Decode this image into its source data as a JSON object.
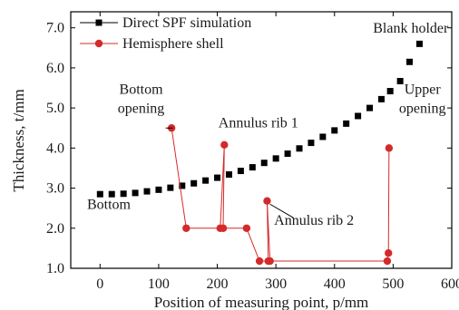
{
  "chart_data": {
    "type": "scatter",
    "xlabel": "Position of measuring point, p/mm",
    "ylabel": "Thickness, t/mm",
    "xlim": [
      -50,
      600
    ],
    "ylim": [
      1.0,
      7.4
    ],
    "x_ticks": [
      "0",
      "100",
      "200",
      "300",
      "400",
      "500",
      "600"
    ],
    "y_ticks": [
      "1.0",
      "2.0",
      "3.0",
      "4.0",
      "5.0",
      "6.0",
      "7.0"
    ],
    "legend_position": "top-left",
    "series": [
      {
        "name": "Direct SPF simulation",
        "color": "#000000",
        "marker": "square",
        "connected": false,
        "points": [
          [
            0,
            2.85
          ],
          [
            20,
            2.85
          ],
          [
            40,
            2.86
          ],
          [
            60,
            2.88
          ],
          [
            80,
            2.92
          ],
          [
            100,
            2.96
          ],
          [
            120,
            3.01
          ],
          [
            140,
            3.06
          ],
          [
            160,
            3.12
          ],
          [
            180,
            3.19
          ],
          [
            200,
            3.26
          ],
          [
            220,
            3.34
          ],
          [
            240,
            3.43
          ],
          [
            260,
            3.52
          ],
          [
            280,
            3.63
          ],
          [
            300,
            3.74
          ],
          [
            320,
            3.86
          ],
          [
            340,
            3.99
          ],
          [
            360,
            4.13
          ],
          [
            380,
            4.28
          ],
          [
            400,
            4.44
          ],
          [
            420,
            4.61
          ],
          [
            440,
            4.8
          ],
          [
            460,
            5.0
          ],
          [
            480,
            5.22
          ],
          [
            495,
            5.42
          ],
          [
            512,
            5.67
          ],
          [
            528,
            6.15
          ],
          [
            545,
            6.6
          ]
        ]
      },
      {
        "name": "Hemisphere shell",
        "color": "#d42a2a",
        "marker": "circle",
        "connected": true,
        "points": [
          [
            122,
            4.5
          ],
          [
            147,
            2.0
          ],
          [
            205,
            2.0
          ],
          [
            212,
            4.08
          ],
          [
            210,
            2.0
          ],
          [
            250,
            2.0
          ],
          [
            272,
            1.18
          ],
          [
            287,
            1.18
          ],
          [
            285,
            2.68
          ],
          [
            290,
            1.18
          ],
          [
            490,
            1.18
          ],
          [
            492,
            1.38
          ],
          [
            493,
            4.0
          ]
        ]
      }
    ],
    "annotations": [
      {
        "text": "Blank holder",
        "x": 530,
        "y": 6.88
      },
      {
        "text": "Bottom",
        "x": 70,
        "y": 5.35
      },
      {
        "text": "opening",
        "x": 70,
        "y": 4.88
      },
      {
        "text": "Annulus rib 1",
        "x": 270,
        "y": 4.52
      },
      {
        "text": "Upper",
        "x": 550,
        "y": 5.35
      },
      {
        "text": "opening",
        "x": 550,
        "y": 4.88
      },
      {
        "text": "Annulus rib 2",
        "x": 365,
        "y": 2.08
      },
      {
        "text": "Bottom",
        "x": 15,
        "y": 2.48
      }
    ],
    "annotation_arrows": [
      {
        "from": [
          112,
          4.5
        ],
        "to": [
          124,
          4.5
        ]
      },
      {
        "from": [
          330,
          2.26
        ],
        "to": [
          290,
          2.6
        ]
      }
    ]
  }
}
